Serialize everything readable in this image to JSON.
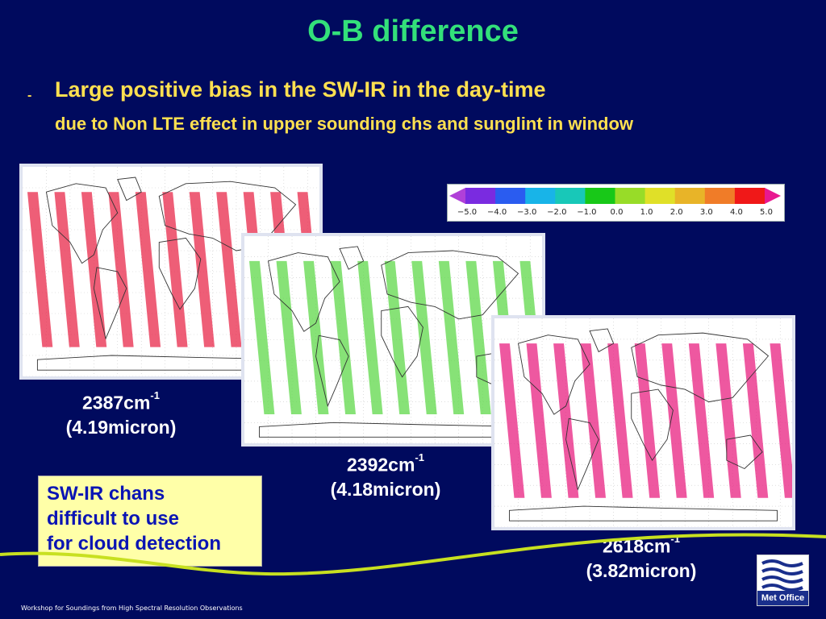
{
  "slide": {
    "title": "O-B difference",
    "bullet_dash": "-",
    "bullet_line1": "Large positive bias in the SW-IR in the day-time",
    "bullet_line2": "due to Non LTE effect in upper sounding chs and sunglint in window"
  },
  "maps": [
    {
      "wavenumber": "2387cm",
      "exponent": "-1",
      "wavelength": "(4.19micron)",
      "dominant_color": "#e8284a"
    },
    {
      "wavenumber": "2392cm",
      "exponent": "-1",
      "wavelength": "(4.18micron)",
      "dominant_color": "#5fd84a"
    },
    {
      "wavenumber": "2618cm",
      "exponent": "-1",
      "wavelength": "(3.82micron)",
      "dominant_color": "#e82080"
    }
  ],
  "colorbar": {
    "labels": [
      "−5.0",
      "−4.0",
      "−3.0",
      "−2.0",
      "−1.0",
      "0.0",
      "1.0",
      "2.0",
      "3.0",
      "4.0",
      "5.0"
    ],
    "colors": [
      "#b040d8",
      "#7a2be0",
      "#2a5cf0",
      "#18b4e8",
      "#18c8b8",
      "#18c818",
      "#98dc28",
      "#e0e028",
      "#e8b428",
      "#f07c28",
      "#f01818",
      "#e81890"
    ]
  },
  "note": {
    "lines": [
      "SW-IR chans",
      "difficult to use",
      "for cloud detection"
    ]
  },
  "footer": {
    "text": "Workshop for Soundings from High Spectral Resolution Observations"
  },
  "logo": {
    "text": "Met Office"
  }
}
